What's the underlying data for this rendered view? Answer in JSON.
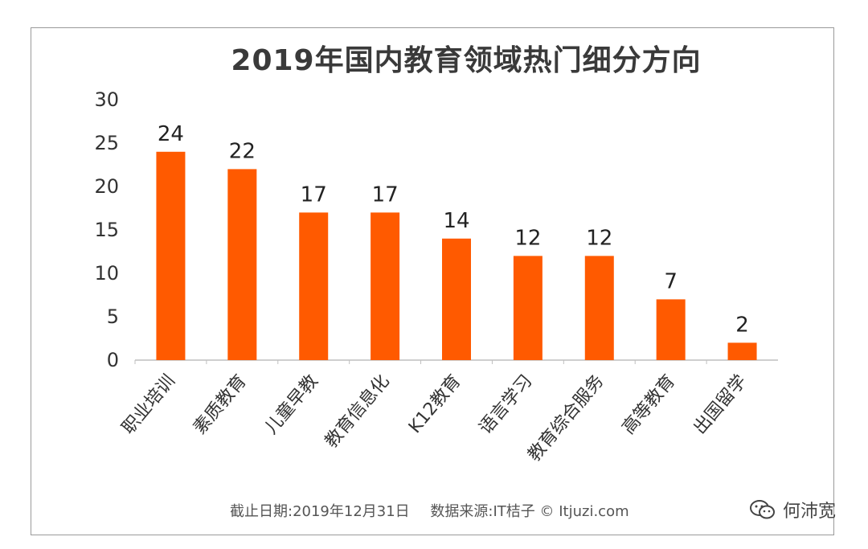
{
  "chart_data": {
    "type": "bar",
    "title": "2019年国内教育领域热门细分方向",
    "categories": [
      "职业培训",
      "素质教育",
      "儿童早教",
      "教育信息化",
      "K12教育",
      "语言学习",
      "教育综合服务",
      "高等教育",
      "出国留学"
    ],
    "values": [
      24,
      22,
      17,
      17,
      14,
      12,
      12,
      7,
      2
    ],
    "ylim": [
      0,
      30
    ],
    "yticks": [
      0,
      5,
      10,
      15,
      20,
      25,
      30
    ],
    "bar_color": "#ff5a00",
    "data_labels": true,
    "grid": false,
    "legend": "none"
  },
  "footnote": {
    "date": "截止日期:2019年12月31日",
    "source": "数据来源:IT桔子 © Itjuzi.com"
  },
  "watermark": {
    "account": "何沛宽",
    "icon": "wechat-icon"
  }
}
